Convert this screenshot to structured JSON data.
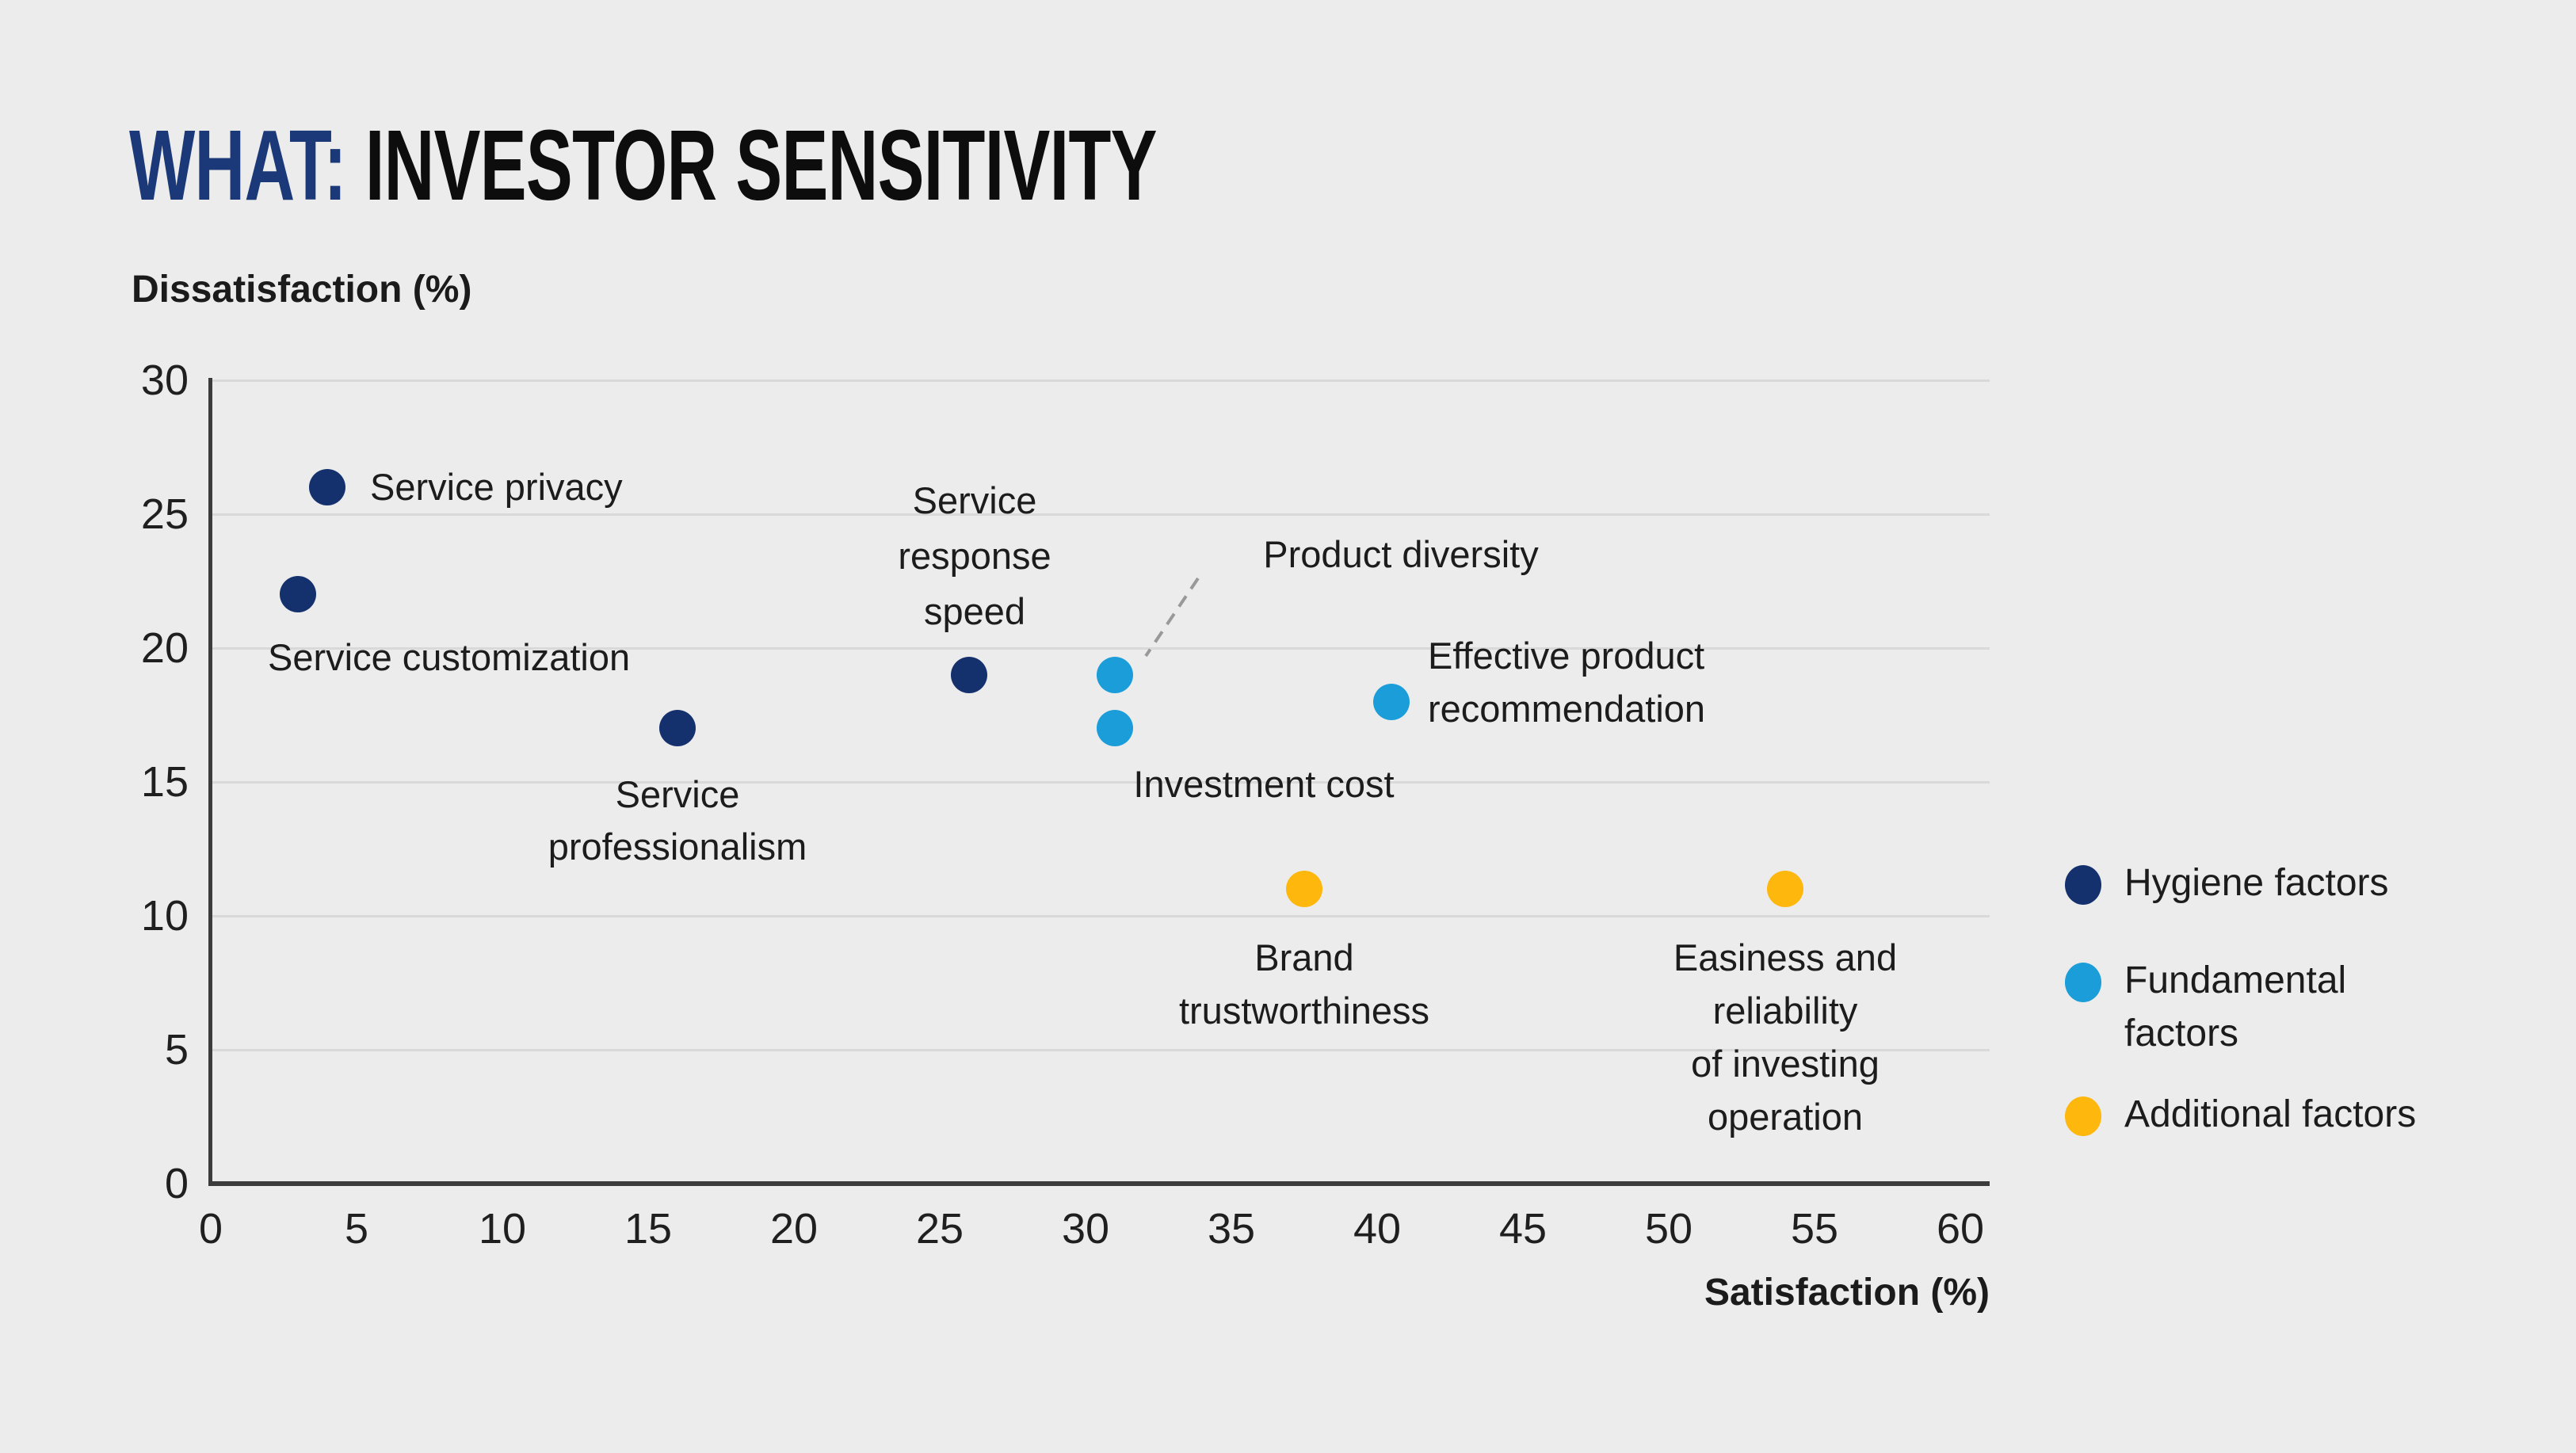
{
  "title": {
    "prefix": "WHAT:",
    "main": " INVESTOR SENSITIVITY"
  },
  "axes": {
    "y_label": "Dissatisfaction (%)",
    "x_label": "Satisfaction (%)",
    "y_ticks": [
      0,
      5,
      10,
      15,
      20,
      25,
      30
    ],
    "x_ticks": [
      0,
      5,
      10,
      15,
      20,
      25,
      30,
      35,
      40,
      45,
      50,
      55,
      60
    ]
  },
  "legend": {
    "items": [
      {
        "label": "Hygiene factors",
        "color": "#15316d"
      },
      {
        "label": "Fundamental factors",
        "color": "#1a9dd9"
      },
      {
        "label": "Additional factors",
        "color": "#fdb70d"
      }
    ]
  },
  "chart_data": {
    "type": "scatter",
    "title": "WHAT: INVESTOR SENSITIVITY",
    "xlabel": "Satisfaction (%)",
    "ylabel": "Dissatisfaction (%)",
    "xlim": [
      0,
      60
    ],
    "ylim": [
      0,
      30
    ],
    "grid": "horizontal-only",
    "legend_position": "right",
    "series": [
      {
        "name": "Hygiene factors",
        "color": "#15316d",
        "points": [
          {
            "label": "Service privacy",
            "x": 4,
            "y": 26
          },
          {
            "label": "Service customization",
            "x": 3,
            "y": 22
          },
          {
            "label": "Service\nprofessionalism",
            "x": 16,
            "y": 17
          },
          {
            "label": "Service\nresponse\nspeed",
            "x": 26,
            "y": 19
          }
        ]
      },
      {
        "name": "Fundamental factors",
        "color": "#1a9dd9",
        "points": [
          {
            "label": "Product diversity",
            "x": 31,
            "y": 19
          },
          {
            "label": "Investment cost",
            "x": 31,
            "y": 17
          },
          {
            "label": "Effective product\nrecommendation",
            "x": 40.5,
            "y": 18
          }
        ]
      },
      {
        "name": "Additional factors",
        "color": "#fdb70d",
        "points": [
          {
            "label": "Brand\ntrustworthiness",
            "x": 37.5,
            "y": 11
          },
          {
            "label": "Easiness and\nreliability\nof investing\noperation",
            "x": 54,
            "y": 11
          }
        ]
      }
    ],
    "annotations": [
      {
        "type": "dashed-leader-line",
        "connects_label": "Product diversity",
        "to_point": {
          "x": 31,
          "y": 19
        }
      }
    ]
  },
  "colors": {
    "background": "#ececec",
    "gridline": "#d9d9d9",
    "axis_line": "#3c3c3c",
    "title_prefix": "#1b3978",
    "title_main": "#0d0d0d",
    "text": "#1c1c1c",
    "leader_line": "#999999"
  }
}
